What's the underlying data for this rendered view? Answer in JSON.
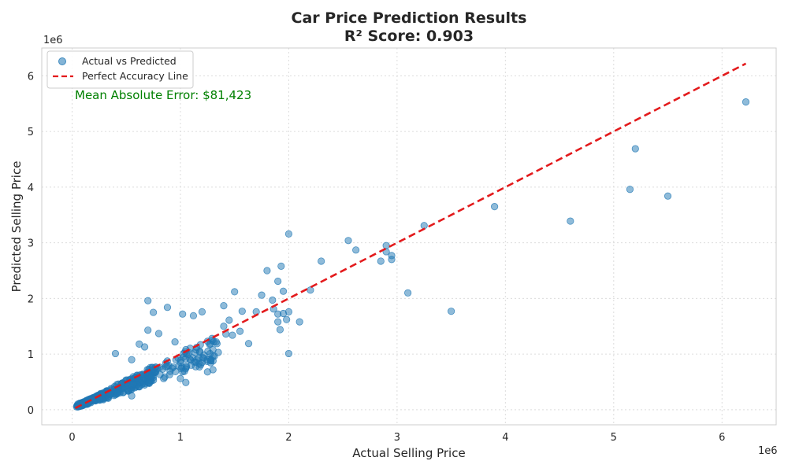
{
  "chart_data": {
    "type": "scatter",
    "title": "Car Price Prediction Results",
    "subtitle": "R² Score: 0.903",
    "xlabel": "Actual Selling Price",
    "ylabel": "Predicted Selling Price",
    "x_offset_label": "1e6",
    "y_offset_label": "1e6",
    "xlim": [
      -0.28,
      6.5
    ],
    "ylim": [
      -0.27,
      6.5
    ],
    "xticks": [
      0,
      1,
      2,
      3,
      4,
      5,
      6
    ],
    "yticks": [
      0,
      1,
      2,
      3,
      4,
      5,
      6
    ],
    "xtick_labels": [
      "0",
      "1",
      "2",
      "3",
      "4",
      "5",
      "6"
    ],
    "ytick_labels": [
      "0",
      "1",
      "2",
      "3",
      "4",
      "5",
      "6"
    ],
    "grid": true,
    "legend_position": "top-left",
    "annotation": "Mean Absolute Error: $81,423",
    "annotation_color": "#008000",
    "series": [
      {
        "name": "Actual vs Predicted",
        "kind": "scatter",
        "color": "#1f77b4",
        "points": [
          [
            6.22,
            5.53
          ],
          [
            5.2,
            4.69
          ],
          [
            5.15,
            3.96
          ],
          [
            5.5,
            3.84
          ],
          [
            4.6,
            3.39
          ],
          [
            3.9,
            3.65
          ],
          [
            3.5,
            1.77
          ],
          [
            3.25,
            3.31
          ],
          [
            3.1,
            2.1
          ],
          [
            2.95,
            2.77
          ],
          [
            2.9,
            2.95
          ],
          [
            2.9,
            2.84
          ],
          [
            2.95,
            2.7
          ],
          [
            2.85,
            2.67
          ],
          [
            2.62,
            2.87
          ],
          [
            2.55,
            3.04
          ],
          [
            2.3,
            2.67
          ],
          [
            2.1,
            1.58
          ],
          [
            2.2,
            2.15
          ],
          [
            2.0,
            3.16
          ],
          [
            2.0,
            1.01
          ],
          [
            2.0,
            1.76
          ],
          [
            1.98,
            1.62
          ],
          [
            1.95,
            1.73
          ],
          [
            1.9,
            1.58
          ],
          [
            1.9,
            1.72
          ],
          [
            1.93,
            2.58
          ],
          [
            1.95,
            2.13
          ],
          [
            1.9,
            2.31
          ],
          [
            1.85,
            1.97
          ],
          [
            1.86,
            1.81
          ],
          [
            1.92,
            1.44
          ],
          [
            1.8,
            2.5
          ],
          [
            1.75,
            2.06
          ],
          [
            1.7,
            1.76
          ],
          [
            1.63,
            1.19
          ],
          [
            1.57,
            1.77
          ],
          [
            1.55,
            1.41
          ],
          [
            1.5,
            2.12
          ],
          [
            1.45,
            1.61
          ],
          [
            1.48,
            1.34
          ],
          [
            1.4,
            1.87
          ],
          [
            1.4,
            1.5
          ],
          [
            1.42,
            1.36
          ],
          [
            1.35,
            1.03
          ],
          [
            1.3,
            1.08
          ],
          [
            1.2,
            1.76
          ],
          [
            1.25,
            1.23
          ],
          [
            1.12,
            1.69
          ],
          [
            1.02,
            1.72
          ],
          [
            0.8,
            1.37
          ],
          [
            0.75,
            1.75
          ],
          [
            0.7,
            1.96
          ],
          [
            0.88,
            1.84
          ],
          [
            0.95,
            1.22
          ],
          [
            0.7,
            1.43
          ],
          [
            0.67,
            1.13
          ],
          [
            0.62,
            1.18
          ],
          [
            0.4,
            1.01
          ],
          [
            1.05,
            0.49
          ],
          [
            1.1,
            0.8
          ],
          [
            1.0,
            0.56
          ],
          [
            0.9,
            0.63
          ],
          [
            0.55,
            0.25
          ],
          [
            0.42,
            0.3
          ],
          [
            0.55,
            0.9
          ],
          [
            1.15,
            0.9
          ],
          [
            1.18,
            1.05
          ],
          [
            1.2,
            0.85
          ],
          [
            1.28,
            0.88
          ],
          [
            1.3,
            0.72
          ],
          [
            1.25,
            0.68
          ]
        ],
        "cloud_clusters": [
          {
            "x_min": 0.04,
            "x_max": 0.35,
            "slope": 0.78,
            "intercept": 0.03,
            "spread": 0.07,
            "count": 160
          },
          {
            "x_min": 0.25,
            "x_max": 0.75,
            "slope": 0.82,
            "intercept": 0.02,
            "spread": 0.12,
            "count": 150
          },
          {
            "x_min": 0.7,
            "x_max": 1.35,
            "slope": 0.8,
            "intercept": 0.05,
            "spread": 0.14,
            "count": 90
          }
        ]
      },
      {
        "name": "Perfect Accuracy Line",
        "kind": "line",
        "color": "#e31a1c",
        "points": [
          [
            0.03,
            0.03
          ],
          [
            6.22,
            6.22
          ]
        ]
      }
    ]
  }
}
